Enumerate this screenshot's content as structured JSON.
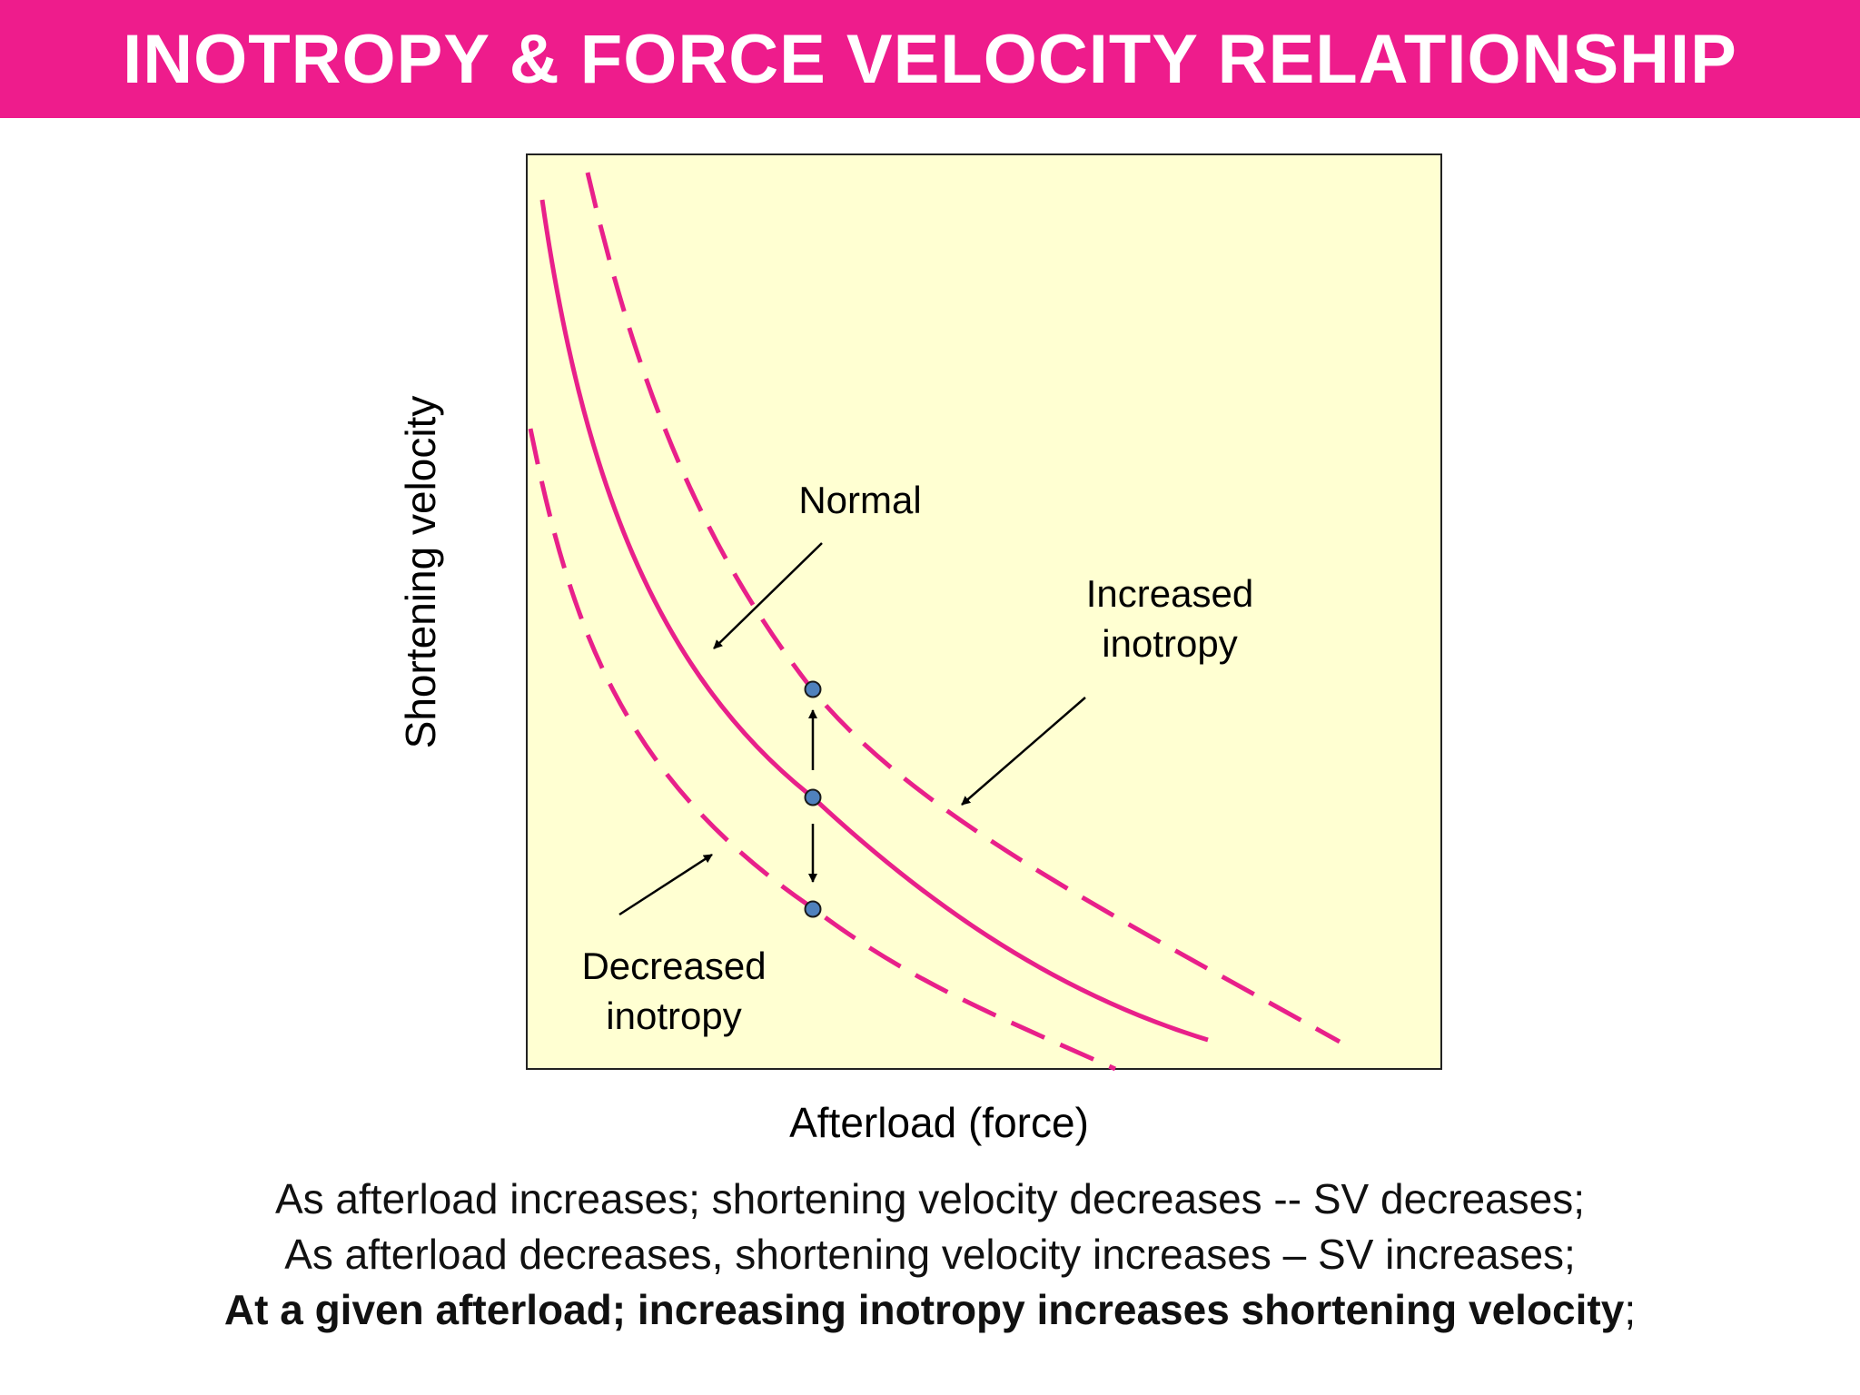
{
  "title": "INOTROPY & FORCE VELOCITY RELATIONSHIP",
  "colors": {
    "banner": "#ee1c8c",
    "curve": "#e8208a",
    "plot_bg": "#ffffd2",
    "point": "#4f81bd"
  },
  "diagram": {
    "ylabel": "Shortening velocity",
    "xlabel": "Afterload (force)",
    "label_normal": "Normal",
    "label_increased_1": "Increased",
    "label_increased_2": "inotropy",
    "label_decreased_1": "Decreased",
    "label_decreased_2": "inotropy"
  },
  "caption": {
    "line1": "As afterload increases; shortening velocity decreases -- SV decreases;",
    "line2": "As afterload decreases, shortening velocity increases – SV increases;",
    "line3_bold": "At a given afterload; increasing inotropy increases shortening velocity",
    "line3_end": ";"
  }
}
